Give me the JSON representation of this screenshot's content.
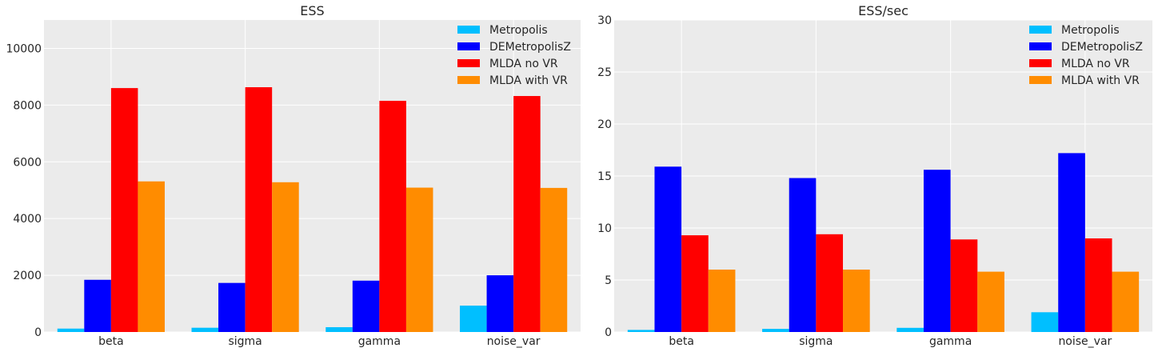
{
  "chart_data": [
    {
      "type": "bar",
      "title": "ESS",
      "xlabel": "",
      "ylabel": "",
      "categories": [
        "beta",
        "sigma",
        "gamma",
        "noise_var"
      ],
      "ylim": [
        0,
        11000
      ],
      "yticks": [
        0,
        2000,
        4000,
        6000,
        8000,
        10000
      ],
      "grid": true,
      "legend": "top-right",
      "series": [
        {
          "name": "Metropolis",
          "color": "#00bfff",
          "values": [
            120,
            150,
            170,
            930
          ]
        },
        {
          "name": "DEMetropolisZ",
          "color": "#0000ff",
          "values": [
            1840,
            1730,
            1810,
            2000
          ]
        },
        {
          "name": "MLDA no VR",
          "color": "#ff0000",
          "values": [
            8600,
            8630,
            8150,
            8320
          ]
        },
        {
          "name": "MLDA with VR",
          "color": "#ff8c00",
          "values": [
            5310,
            5280,
            5090,
            5080
          ]
        }
      ]
    },
    {
      "type": "bar",
      "title": "ESS/sec",
      "xlabel": "",
      "ylabel": "",
      "categories": [
        "beta",
        "sigma",
        "gamma",
        "noise_var"
      ],
      "ylim": [
        0,
        30
      ],
      "yticks": [
        0,
        5,
        10,
        15,
        20,
        25,
        30
      ],
      "grid": true,
      "legend": "top-right",
      "series": [
        {
          "name": "Metropolis",
          "color": "#00bfff",
          "values": [
            0.2,
            0.3,
            0.4,
            1.9
          ]
        },
        {
          "name": "DEMetropolisZ",
          "color": "#0000ff",
          "values": [
            15.9,
            14.8,
            15.6,
            17.2
          ]
        },
        {
          "name": "MLDA no VR",
          "color": "#ff0000",
          "values": [
            9.3,
            9.4,
            8.9,
            9.0
          ]
        },
        {
          "name": "MLDA with VR",
          "color": "#ff8c00",
          "values": [
            6.0,
            6.0,
            5.8,
            5.8
          ]
        }
      ]
    }
  ]
}
